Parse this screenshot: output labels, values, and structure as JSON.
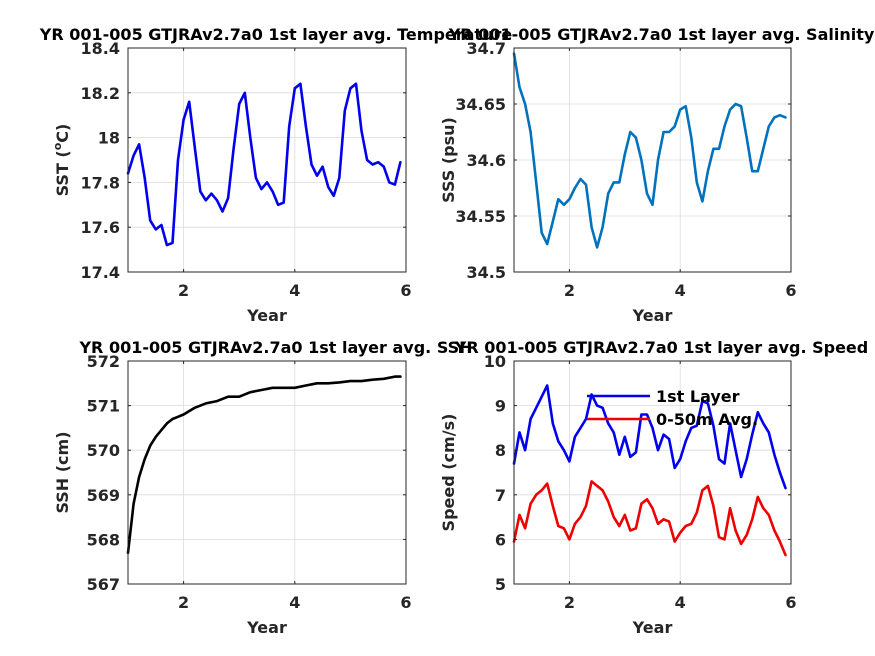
{
  "chart_data": [
    {
      "type": "line",
      "title": "YR 001-005 GTJRAv2.7a0 1st layer avg. Temperature",
      "xlabel": "Year",
      "ylabel": "SST (°C)",
      "ylabel_main": "SST (",
      "ylabel_sup": "o",
      "ylabel_tail": "C)",
      "xlim": [
        1,
        6
      ],
      "ylim": [
        17.4,
        18.4
      ],
      "xticks": [
        2,
        4,
        6
      ],
      "xtick_labels": [
        "2",
        "4",
        "6"
      ],
      "yticks": [
        17.4,
        17.6,
        17.8,
        18,
        18.2,
        18.4
      ],
      "ytick_labels": [
        "17.4",
        "17.6",
        "17.8",
        "18",
        "18.2",
        "18.4"
      ],
      "grid": true,
      "series": [
        {
          "color": "#0000ee",
          "x": [
            1.0,
            1.1,
            1.2,
            1.3,
            1.4,
            1.5,
            1.6,
            1.7,
            1.8,
            1.9,
            2.0,
            2.1,
            2.2,
            2.3,
            2.4,
            2.5,
            2.6,
            2.7,
            2.8,
            2.9,
            3.0,
            3.1,
            3.2,
            3.3,
            3.4,
            3.5,
            3.6,
            3.7,
            3.8,
            3.9,
            4.0,
            4.1,
            4.2,
            4.3,
            4.4,
            4.5,
            4.6,
            4.7,
            4.8,
            4.9,
            5.0,
            5.1,
            5.2,
            5.3,
            5.4,
            5.5,
            5.6,
            5.7,
            5.8,
            5.9
          ],
          "y": [
            17.84,
            17.92,
            17.97,
            17.82,
            17.63,
            17.59,
            17.61,
            17.52,
            17.53,
            17.9,
            18.08,
            18.16,
            17.96,
            17.76,
            17.72,
            17.75,
            17.72,
            17.67,
            17.73,
            17.95,
            18.15,
            18.2,
            18.0,
            17.82,
            17.77,
            17.8,
            17.76,
            17.7,
            17.71,
            18.05,
            18.22,
            18.24,
            18.05,
            17.88,
            17.83,
            17.87,
            17.78,
            17.74,
            17.82,
            18.12,
            18.22,
            18.24,
            18.03,
            17.9,
            17.88,
            17.89,
            17.87,
            17.8,
            17.79,
            17.89
          ]
        }
      ]
    },
    {
      "type": "line",
      "title": "YR 001-005 GTJRAv2.7a0 1st layer avg. Salinity",
      "xlabel": "Year",
      "ylabel": "SSS (psu)",
      "xlim": [
        1,
        6
      ],
      "ylim": [
        34.5,
        34.7
      ],
      "xticks": [
        2,
        4,
        6
      ],
      "xtick_labels": [
        "2",
        "4",
        "6"
      ],
      "yticks": [
        34.5,
        34.55,
        34.6,
        34.65,
        34.7
      ],
      "ytick_labels": [
        "34.5",
        "34.55",
        "34.6",
        "34.65",
        "34.7"
      ],
      "grid": true,
      "series": [
        {
          "color": "#0072bd",
          "x": [
            1.0,
            1.1,
            1.2,
            1.3,
            1.4,
            1.5,
            1.6,
            1.7,
            1.8,
            1.9,
            2.0,
            2.1,
            2.2,
            2.3,
            2.4,
            2.5,
            2.6,
            2.7,
            2.8,
            2.9,
            3.0,
            3.1,
            3.2,
            3.3,
            3.4,
            3.5,
            3.6,
            3.7,
            3.8,
            3.9,
            4.0,
            4.1,
            4.2,
            4.3,
            4.4,
            4.5,
            4.6,
            4.7,
            4.8,
            4.9,
            5.0,
            5.1,
            5.2,
            5.3,
            5.4,
            5.5,
            5.6,
            5.7,
            5.8,
            5.9
          ],
          "y": [
            34.695,
            34.665,
            34.65,
            34.625,
            34.58,
            34.535,
            34.525,
            34.545,
            34.565,
            34.56,
            34.565,
            34.575,
            34.583,
            34.578,
            34.54,
            34.522,
            34.54,
            34.57,
            34.58,
            34.58,
            34.605,
            34.625,
            34.62,
            34.6,
            34.57,
            34.56,
            34.6,
            34.625,
            34.625,
            34.63,
            34.645,
            34.648,
            34.62,
            34.58,
            34.563,
            34.59,
            34.61,
            34.61,
            34.63,
            34.645,
            34.65,
            34.648,
            34.62,
            34.59,
            34.59,
            34.61,
            34.63,
            34.638,
            34.64,
            34.638
          ]
        }
      ]
    },
    {
      "type": "line",
      "title": "YR 001-005 GTJRAv2.7a0 1st layer avg. SSH",
      "xlabel": "Year",
      "ylabel": "SSH (cm)",
      "xlim": [
        1,
        6
      ],
      "ylim": [
        567,
        572
      ],
      "xticks": [
        2,
        4,
        6
      ],
      "xtick_labels": [
        "2",
        "4",
        "6"
      ],
      "yticks": [
        567,
        568,
        569,
        570,
        571,
        572
      ],
      "ytick_labels": [
        "567",
        "568",
        "569",
        "570",
        "571",
        "572"
      ],
      "grid": true,
      "series": [
        {
          "color": "#000000",
          "x": [
            1.0,
            1.1,
            1.2,
            1.3,
            1.4,
            1.5,
            1.6,
            1.7,
            1.8,
            1.9,
            2.0,
            2.2,
            2.4,
            2.6,
            2.8,
            3.0,
            3.2,
            3.4,
            3.6,
            3.8,
            4.0,
            4.2,
            4.4,
            4.6,
            4.8,
            5.0,
            5.2,
            5.4,
            5.6,
            5.8,
            5.9
          ],
          "y": [
            567.7,
            568.8,
            569.4,
            569.8,
            570.1,
            570.3,
            570.45,
            570.6,
            570.7,
            570.75,
            570.8,
            570.95,
            571.05,
            571.1,
            571.2,
            571.2,
            571.3,
            571.35,
            571.4,
            571.4,
            571.4,
            571.45,
            571.5,
            571.5,
            571.52,
            571.55,
            571.55,
            571.58,
            571.6,
            571.65,
            571.65
          ]
        }
      ]
    },
    {
      "type": "line",
      "title": "YR 001-005 GTJRAv2.7a0 1st layer avg. Speed",
      "xlabel": "Year",
      "ylabel": "Speed (cm/s)",
      "xlim": [
        1,
        6
      ],
      "ylim": [
        5,
        10
      ],
      "xticks": [
        2,
        4,
        6
      ],
      "xtick_labels": [
        "2",
        "4",
        "6"
      ],
      "yticks": [
        5,
        6,
        7,
        8,
        9,
        10
      ],
      "ytick_labels": [
        "5",
        "6",
        "7",
        "8",
        "9",
        "10"
      ],
      "grid": true,
      "legend_placement": "top-center",
      "series": [
        {
          "name": "1st Layer",
          "color": "#0000ee",
          "x": [
            1.0,
            1.1,
            1.2,
            1.3,
            1.4,
            1.5,
            1.6,
            1.7,
            1.8,
            1.9,
            2.0,
            2.1,
            2.2,
            2.3,
            2.4,
            2.5,
            2.6,
            2.7,
            2.8,
            2.9,
            3.0,
            3.1,
            3.2,
            3.3,
            3.4,
            3.5,
            3.6,
            3.7,
            3.8,
            3.9,
            4.0,
            4.1,
            4.2,
            4.3,
            4.4,
            4.5,
            4.6,
            4.7,
            4.8,
            4.9,
            5.0,
            5.1,
            5.2,
            5.3,
            5.4,
            5.5,
            5.6,
            5.7,
            5.8,
            5.9
          ],
          "y": [
            7.7,
            8.4,
            8.0,
            8.7,
            8.95,
            9.2,
            9.45,
            8.6,
            8.2,
            8.0,
            7.75,
            8.3,
            8.5,
            8.7,
            9.25,
            9.0,
            8.95,
            8.6,
            8.4,
            7.9,
            8.3,
            7.85,
            7.95,
            8.8,
            8.8,
            8.5,
            8.0,
            8.35,
            8.25,
            7.6,
            7.8,
            8.2,
            8.5,
            8.55,
            9.1,
            9.05,
            8.55,
            7.8,
            7.7,
            8.6,
            8.0,
            7.4,
            7.8,
            8.35,
            8.85,
            8.6,
            8.4,
            7.9,
            7.5,
            7.15
          ]
        },
        {
          "name": "0-50m Avg.",
          "color": "#ee0000",
          "x": [
            1.0,
            1.1,
            1.2,
            1.3,
            1.4,
            1.5,
            1.6,
            1.7,
            1.8,
            1.9,
            2.0,
            2.1,
            2.2,
            2.3,
            2.4,
            2.5,
            2.6,
            2.7,
            2.8,
            2.9,
            3.0,
            3.1,
            3.2,
            3.3,
            3.4,
            3.5,
            3.6,
            3.7,
            3.8,
            3.9,
            4.0,
            4.1,
            4.2,
            4.3,
            4.4,
            4.5,
            4.6,
            4.7,
            4.8,
            4.9,
            5.0,
            5.1,
            5.2,
            5.3,
            5.4,
            5.5,
            5.6,
            5.7,
            5.8,
            5.9
          ],
          "y": [
            5.95,
            6.55,
            6.25,
            6.8,
            7.0,
            7.1,
            7.25,
            6.75,
            6.3,
            6.25,
            6.0,
            6.35,
            6.5,
            6.75,
            7.3,
            7.2,
            7.1,
            6.85,
            6.5,
            6.3,
            6.55,
            6.2,
            6.25,
            6.8,
            6.9,
            6.7,
            6.35,
            6.45,
            6.4,
            5.95,
            6.15,
            6.3,
            6.35,
            6.6,
            7.1,
            7.2,
            6.75,
            6.05,
            6.0,
            6.7,
            6.2,
            5.9,
            6.1,
            6.45,
            6.95,
            6.7,
            6.55,
            6.2,
            5.95,
            5.65
          ]
        }
      ]
    }
  ]
}
